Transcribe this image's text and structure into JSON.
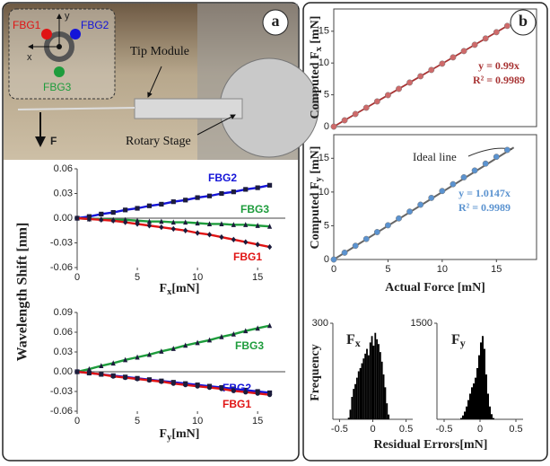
{
  "panel_labels": [
    "a",
    "b"
  ],
  "photo": {
    "sensors": [
      "FBG1",
      "FBG2",
      "FBG3"
    ],
    "axes": [
      "x",
      "y"
    ],
    "callouts": [
      "Tip Module",
      "Rotary Stage"
    ],
    "force": "F"
  },
  "shared_y_label": "Wavelength Shift [nm]",
  "chart_data": [
    {
      "type": "line",
      "x_label": {
        "main": "F",
        "sub": "x",
        "unit": "[mN]"
      },
      "x": [
        0,
        1,
        2,
        3,
        4,
        5,
        6,
        7,
        8,
        9,
        10,
        11,
        12,
        13,
        14,
        15,
        16
      ],
      "xlim": [
        0,
        17.3
      ],
      "xticks": [
        0,
        5,
        10,
        15
      ],
      "ylim": [
        -0.06,
        0.06
      ],
      "yticks": [
        0.06,
        0.03,
        {
          "value": 0,
          "label": "0.00"
        },
        -0.03,
        -0.06
      ],
      "marker_color": "#1c1c3c",
      "series": [
        {
          "name": "FBG2",
          "color": "#1414d8",
          "marker": "square",
          "values": [
            0,
            0.002,
            0.005,
            0.007,
            0.01,
            0.012,
            0.015,
            0.017,
            0.02,
            0.022,
            0.025,
            0.027,
            0.03,
            0.032,
            0.035,
            0.037,
            0.04
          ]
        },
        {
          "name": "FBG3",
          "color": "#1e9c3c",
          "marker": "triangle",
          "values": [
            0,
            -0.001,
            -0.001,
            -0.002,
            -0.002,
            -0.003,
            -0.004,
            -0.004,
            -0.005,
            -0.005,
            -0.006,
            -0.007,
            -0.007,
            -0.008,
            -0.008,
            -0.009,
            -0.01
          ]
        },
        {
          "name": "FBG1",
          "color": "#e01414",
          "marker": "diamond",
          "values": [
            0,
            -0.001,
            -0.002,
            -0.003,
            -0.005,
            -0.007,
            -0.009,
            -0.011,
            -0.013,
            -0.015,
            -0.018,
            -0.02,
            -0.023,
            -0.026,
            -0.029,
            -0.032,
            -0.035
          ]
        }
      ]
    },
    {
      "type": "line",
      "x_label": {
        "main": "F",
        "sub": "y",
        "unit": "[mN]"
      },
      "x": [
        0,
        1,
        2,
        3,
        4,
        5,
        6,
        7,
        8,
        9,
        10,
        11,
        12,
        13,
        14,
        15,
        16
      ],
      "xlim": [
        0,
        17.3
      ],
      "xticks": [
        0,
        5,
        10,
        15
      ],
      "ylim": [
        -0.06,
        0.09
      ],
      "yticks": [
        0.09,
        0.06,
        0.03,
        {
          "value": 0,
          "label": "0.00"
        },
        -0.03,
        -0.06
      ],
      "marker_color": "#1c1c3c",
      "series": [
        {
          "name": "FBG3",
          "color": "#1e9c3c",
          "marker": "triangle",
          "values": [
            0,
            0.004,
            0.009,
            0.013,
            0.018,
            0.022,
            0.026,
            0.031,
            0.035,
            0.04,
            0.044,
            0.048,
            0.053,
            0.057,
            0.062,
            0.066,
            0.07
          ]
        },
        {
          "name": "FBG2",
          "color": "#1414d8",
          "marker": "square",
          "values": [
            0,
            -0.002,
            -0.004,
            -0.006,
            -0.008,
            -0.01,
            -0.012,
            -0.014,
            -0.016,
            -0.018,
            -0.02,
            -0.022,
            -0.024,
            -0.026,
            -0.028,
            -0.03,
            -0.032
          ]
        },
        {
          "name": "FBG1",
          "color": "#e01414",
          "marker": "circle",
          "values": [
            0,
            -0.002,
            -0.004,
            -0.007,
            -0.009,
            -0.011,
            -0.013,
            -0.015,
            -0.018,
            -0.02,
            -0.022,
            -0.024,
            -0.026,
            -0.029,
            -0.031,
            -0.033,
            -0.035
          ]
        }
      ]
    },
    {
      "type": "scatter",
      "y_label": {
        "main": "Computed F",
        "sub": "x",
        "unit": " [mN]"
      },
      "x": [
        0,
        1,
        2,
        3,
        4,
        5,
        6,
        7,
        8,
        9,
        10,
        11,
        12,
        13,
        14,
        15,
        16
      ],
      "xlim": [
        0,
        18.7
      ],
      "ylim": [
        0,
        18.5
      ],
      "yticks": [
        0,
        5,
        10,
        15
      ],
      "values": [
        0,
        0.99,
        1.98,
        2.97,
        3.96,
        4.95,
        5.94,
        6.93,
        7.92,
        8.91,
        9.9,
        10.89,
        11.88,
        12.87,
        13.86,
        14.85,
        15.84
      ],
      "color": "#cf6a6a",
      "line_color": "#a83434",
      "annotations": [
        "y = 0.99x",
        "R² = 0.9989"
      ]
    },
    {
      "type": "scatter",
      "y_label": {
        "main": "Computed F",
        "sub": "y",
        "unit": " [mN]"
      },
      "x_label": "Actual Force [mN]",
      "x": [
        0,
        1,
        2,
        3,
        4,
        5,
        6,
        7,
        8,
        9,
        10,
        11,
        12,
        13,
        14,
        15,
        16
      ],
      "xlim": [
        0,
        18.7
      ],
      "xticks": [
        0,
        5,
        10,
        15
      ],
      "ylim": [
        0,
        18.5
      ],
      "yticks": [
        0,
        5,
        10,
        15
      ],
      "values": [
        0,
        1.01,
        2.03,
        3.04,
        4.06,
        5.07,
        6.09,
        7.1,
        8.12,
        9.13,
        10.15,
        11.16,
        12.18,
        13.19,
        14.21,
        15.22,
        16.24
      ],
      "color": "#5b93d0",
      "line_color": "#666666",
      "ideal_line": "Ideal line",
      "ideal_slope": 1,
      "annotations": [
        "y = 1.0147x",
        "R² = 0.9989"
      ]
    },
    {
      "type": "histogram",
      "title": {
        "main": "F",
        "sub": "x"
      },
      "y_label": "Frequency",
      "x_label": "Residual Errors[mN]",
      "color": "#000000",
      "bins": [
        -0.4,
        -0.375,
        -0.35,
        -0.325,
        -0.3,
        -0.275,
        -0.25,
        -0.225,
        -0.2,
        -0.175,
        -0.15,
        -0.125,
        -0.1,
        -0.075,
        -0.05,
        -0.025,
        0,
        0.025,
        0.05,
        0.075,
        0.1,
        0.125,
        0.15,
        0.175,
        0.2,
        0.225,
        0.25,
        0.275,
        0.3
      ],
      "counts": [
        0,
        5,
        30,
        70,
        95,
        110,
        130,
        150,
        160,
        175,
        190,
        205,
        220,
        200,
        240,
        260,
        230,
        270,
        250,
        235,
        210,
        180,
        140,
        100,
        50,
        15,
        0,
        0
      ],
      "xlim": [
        -0.6,
        0.6
      ],
      "xticks": [
        -0.5,
        0,
        0.5
      ],
      "ylim": [
        0,
        300
      ],
      "yticks": [
        300
      ]
    },
    {
      "type": "histogram",
      "title": {
        "main": "F",
        "sub": "y"
      },
      "color": "#000000",
      "bins": [
        -0.3,
        -0.275,
        -0.25,
        -0.225,
        -0.2,
        -0.175,
        -0.15,
        -0.125,
        -0.1,
        -0.075,
        -0.05,
        -0.025,
        0,
        0.025,
        0.05,
        0.075,
        0.1,
        0.125,
        0.15,
        0.175,
        0.2,
        0.225,
        0.25
      ],
      "counts": [
        0,
        20,
        60,
        120,
        200,
        300,
        400,
        500,
        560,
        650,
        800,
        1000,
        1200,
        1300,
        1100,
        700,
        400,
        200,
        80,
        20,
        0,
        0
      ],
      "xlim": [
        -0.6,
        0.6
      ],
      "xticks": [
        -0.5,
        0,
        0.5
      ],
      "ylim": [
        0,
        1500
      ],
      "yticks": [
        1500
      ]
    }
  ]
}
